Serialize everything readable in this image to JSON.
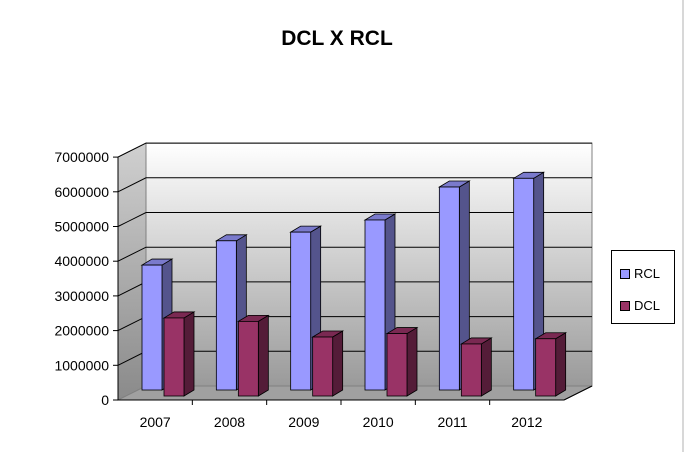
{
  "chart_data": {
    "type": "bar",
    "title": "DCL X RCL",
    "categories": [
      "2007",
      "2008",
      "2009",
      "2010",
      "2011",
      "2012"
    ],
    "series": [
      {
        "name": "RCL",
        "values": [
          3600000,
          4300000,
          4550000,
          4900000,
          5850000,
          6100000
        ],
        "color": "#9999ff"
      },
      {
        "name": "DCL",
        "values": [
          2250000,
          2150000,
          1700000,
          1800000,
          1500000,
          1650000
        ],
        "color": "#993366"
      }
    ],
    "ylim": [
      0,
      7000000
    ],
    "yticks": [
      "0",
      "1000000",
      "2000000",
      "3000000",
      "4000000",
      "5000000",
      "6000000",
      "7000000"
    ],
    "grid": true,
    "legend_position": "right",
    "style": "3d-clustered-column"
  }
}
